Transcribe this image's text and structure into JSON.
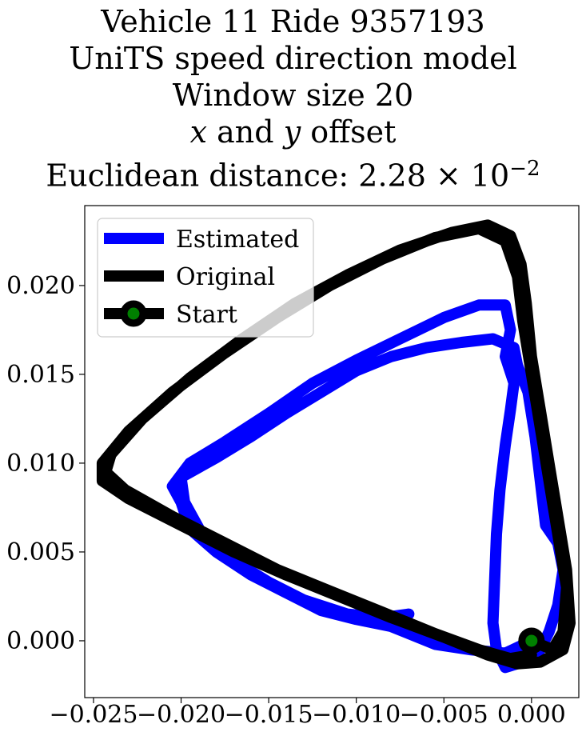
{
  "title": {
    "line1": "Vehicle 11 Ride 9357193",
    "line2": "UniTS speed direction model",
    "line3": "Window size 20",
    "line4_x": "x",
    "line4_and": " and ",
    "line4_y": "y",
    "line4_rest": " offset",
    "line5_prefix": "Euclidean distance: 2.28 × 10",
    "line5_exp": "−2"
  },
  "chart_data": {
    "type": "line",
    "xlim": [
      -0.0255,
      0.0027
    ],
    "ylim": [
      -0.0032,
      0.0245
    ],
    "x_ticks": [
      -0.025,
      -0.02,
      -0.015,
      -0.01,
      -0.005,
      0.0
    ],
    "x_tick_labels": [
      "−0.025",
      "−0.020",
      "−0.015",
      "−0.010",
      "−0.005",
      "0.000"
    ],
    "y_ticks": [
      0.0,
      0.005,
      0.01,
      0.015,
      0.02
    ],
    "y_tick_labels": [
      "0.000",
      "0.005",
      "0.010",
      "0.015",
      "0.020"
    ],
    "legend_position": "upper-left",
    "grid": false,
    "series": [
      {
        "name": "Estimated",
        "color": "#0000ff",
        "points": [
          [
            0.0,
            0.0
          ],
          [
            -0.0015,
            -0.0007
          ],
          [
            -0.0035,
            -0.0005
          ],
          [
            -0.0055,
            -0.0002
          ],
          [
            -0.008,
            0.0008
          ],
          [
            -0.01,
            0.0012
          ],
          [
            -0.012,
            0.0017
          ],
          [
            -0.014,
            0.0027
          ],
          [
            -0.016,
            0.0037
          ],
          [
            -0.018,
            0.005
          ],
          [
            -0.0195,
            0.0063
          ],
          [
            -0.02,
            0.0078
          ],
          [
            -0.0205,
            0.0087
          ],
          [
            -0.0195,
            0.01
          ],
          [
            -0.0175,
            0.0112
          ],
          [
            -0.015,
            0.0128
          ],
          [
            -0.0125,
            0.0145
          ],
          [
            -0.01,
            0.0158
          ],
          [
            -0.0075,
            0.017
          ],
          [
            -0.005,
            0.0182
          ],
          [
            -0.003,
            0.0189
          ],
          [
            -0.0015,
            0.0189
          ],
          [
            -0.0012,
            0.0175
          ],
          [
            -0.0015,
            0.016
          ],
          [
            -0.001,
            0.0145
          ],
          [
            -0.0012,
            0.013
          ],
          [
            -0.0015,
            0.011
          ],
          [
            -0.0018,
            0.0085
          ],
          [
            -0.002,
            0.006
          ],
          [
            -0.0021,
            0.0035
          ],
          [
            -0.0022,
            0.001
          ],
          [
            -0.002,
            -0.0005
          ],
          [
            -0.0015,
            -0.0015
          ],
          [
            -0.0005,
            -0.0012
          ],
          [
            0.0005,
            -0.0005
          ],
          [
            0.001,
            0.0005
          ],
          [
            0.0015,
            0.002
          ],
          [
            0.0018,
            0.004
          ],
          [
            0.0015,
            0.0055
          ],
          [
            0.0008,
            0.0065
          ],
          [
            0.0005,
            0.009
          ],
          [
            0.0002,
            0.0115
          ],
          [
            -0.0002,
            0.014
          ],
          [
            -0.0008,
            0.0155
          ],
          [
            -0.001,
            0.0165
          ],
          [
            -0.0022,
            0.017
          ],
          [
            -0.004,
            0.0168
          ],
          [
            -0.006,
            0.0165
          ],
          [
            -0.008,
            0.016
          ],
          [
            -0.01,
            0.0152
          ],
          [
            -0.012,
            0.014
          ],
          [
            -0.014,
            0.0128
          ],
          [
            -0.016,
            0.0115
          ],
          [
            -0.018,
            0.0103
          ],
          [
            -0.02,
            0.0092
          ],
          [
            -0.0198,
            0.0078
          ],
          [
            -0.0188,
            0.006
          ],
          [
            -0.017,
            0.0045
          ],
          [
            -0.015,
            0.0033
          ],
          [
            -0.013,
            0.0023
          ],
          [
            -0.0105,
            0.0015
          ],
          [
            -0.0085,
            0.0013
          ],
          [
            -0.007,
            0.0015
          ]
        ]
      },
      {
        "name": "Original",
        "color": "#000000",
        "points": [
          [
            0.0,
            0.0
          ],
          [
            0.0012,
            -0.0005
          ],
          [
            0.0018,
            0.0005
          ],
          [
            0.002,
            0.003
          ],
          [
            0.0015,
            0.006
          ],
          [
            0.001,
            0.009
          ],
          [
            0.0005,
            0.012
          ],
          [
            0.0,
            0.015
          ],
          [
            -0.0005,
            0.018
          ],
          [
            -0.0008,
            0.0205
          ],
          [
            -0.0015,
            0.0225
          ],
          [
            -0.003,
            0.0232
          ],
          [
            -0.0055,
            0.0227
          ],
          [
            -0.0085,
            0.0215
          ],
          [
            -0.0115,
            0.02
          ],
          [
            -0.0145,
            0.0182
          ],
          [
            -0.0175,
            0.0162
          ],
          [
            -0.0205,
            0.014
          ],
          [
            -0.023,
            0.0118
          ],
          [
            -0.0245,
            0.01
          ],
          [
            -0.0245,
            0.009
          ],
          [
            -0.023,
            0.008
          ],
          [
            -0.02,
            0.0065
          ],
          [
            -0.017,
            0.005
          ],
          [
            -0.014,
            0.0037
          ],
          [
            -0.011,
            0.0025
          ],
          [
            -0.008,
            0.0013
          ],
          [
            -0.005,
            0.0002
          ],
          [
            -0.0025,
            -0.0008
          ],
          [
            -0.0008,
            -0.0013
          ],
          [
            0.0005,
            -0.0012
          ],
          [
            0.0018,
            -0.0005
          ],
          [
            0.0022,
            0.001
          ],
          [
            0.002,
            0.004
          ],
          [
            0.0015,
            0.007
          ],
          [
            0.001,
            0.01
          ],
          [
            0.0005,
            0.013
          ],
          [
            0.0,
            0.016
          ],
          [
            -0.0003,
            0.019
          ],
          [
            -0.0006,
            0.0212
          ],
          [
            -0.0012,
            0.0228
          ],
          [
            -0.0025,
            0.0234
          ],
          [
            -0.0045,
            0.023
          ],
          [
            -0.0075,
            0.022
          ],
          [
            -0.0105,
            0.0206
          ],
          [
            -0.0135,
            0.019
          ],
          [
            -0.0165,
            0.017
          ],
          [
            -0.0195,
            0.0148
          ],
          [
            -0.0222,
            0.0125
          ],
          [
            -0.024,
            0.0105
          ],
          [
            -0.0243,
            0.0095
          ],
          [
            -0.0232,
            0.0085
          ],
          [
            -0.0205,
            0.007
          ],
          [
            -0.0175,
            0.0055
          ],
          [
            -0.0145,
            0.004
          ],
          [
            -0.0115,
            0.0028
          ],
          [
            -0.0085,
            0.0016
          ],
          [
            -0.0055,
            0.0004
          ],
          [
            -0.003,
            -0.0005
          ],
          [
            -0.0012,
            -0.001
          ],
          [
            0.0,
            -0.0008
          ]
        ]
      }
    ],
    "start": {
      "name": "Start",
      "x": 0.0,
      "y": 0.0,
      "marker_color": "#008000",
      "edge_color": "#000000"
    }
  }
}
